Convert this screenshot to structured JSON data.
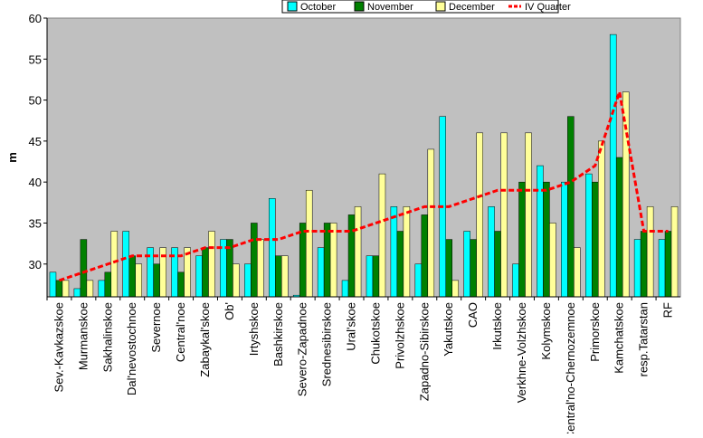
{
  "chart_data": {
    "type": "bar",
    "y_label": "m",
    "categories": [
      "Sev.-Kavkazskoe",
      "Murmanskoe",
      "Sakhalinskoe",
      "Dal'nevostochnoe",
      "Severnoe",
      "Central'noe",
      "Zabaykal'skoe",
      "Ob'",
      "Irtyshskoe",
      "Bashkirskoe",
      "Severo-Zapadnoe",
      "Srednesibirskoe",
      "Ural'skoe",
      "Chukotskoe",
      "Privolzhskoe",
      "Zapadno-Sibirskoe",
      "Yakutskoe",
      "CAO",
      "Irkutskoe",
      "Verkhne-Volzhskoe",
      "Kolymskoe",
      "Central'no-Chernozemnoe",
      "Primorskoe",
      "Kamchatskoe",
      "resp.Tatarstan",
      "RF"
    ],
    "series": [
      {
        "name": "October",
        "color": "#00ffff",
        "kind": "bar",
        "values": [
          29,
          27,
          28,
          34,
          32,
          32,
          31,
          33,
          30,
          38,
          26.2,
          32,
          28,
          31,
          37,
          30,
          48,
          34,
          37,
          30,
          42,
          40,
          41,
          58,
          33,
          33
        ]
      },
      {
        "name": "November",
        "color": "#008000",
        "kind": "bar",
        "values": [
          28,
          33,
          29,
          31,
          30,
          29,
          32,
          33,
          35,
          31,
          35,
          35,
          36,
          31,
          34,
          36,
          33,
          33,
          34,
          40,
          40,
          48,
          40,
          43,
          34,
          34
        ]
      },
      {
        "name": "December",
        "color": "#ffff99",
        "kind": "bar",
        "values": [
          28,
          28,
          34,
          30,
          32,
          32,
          34,
          30,
          33,
          31,
          39,
          35,
          37,
          41,
          37,
          44,
          28,
          46,
          46,
          46,
          35,
          32,
          45,
          51,
          37,
          37
        ]
      },
      {
        "name": "IV Quarter",
        "color": "#ff0000",
        "kind": "line",
        "values": [
          28,
          29,
          30,
          31,
          31,
          31,
          32,
          32,
          33,
          33,
          34,
          34,
          34,
          35,
          36,
          37,
          37,
          38,
          39,
          39,
          39,
          40,
          42,
          51,
          34,
          34
        ]
      }
    ],
    "ylim": [
      26,
      60
    ],
    "yticks": [
      30,
      35,
      40,
      45,
      50,
      55,
      60
    ],
    "grid": false,
    "legend": "top"
  }
}
